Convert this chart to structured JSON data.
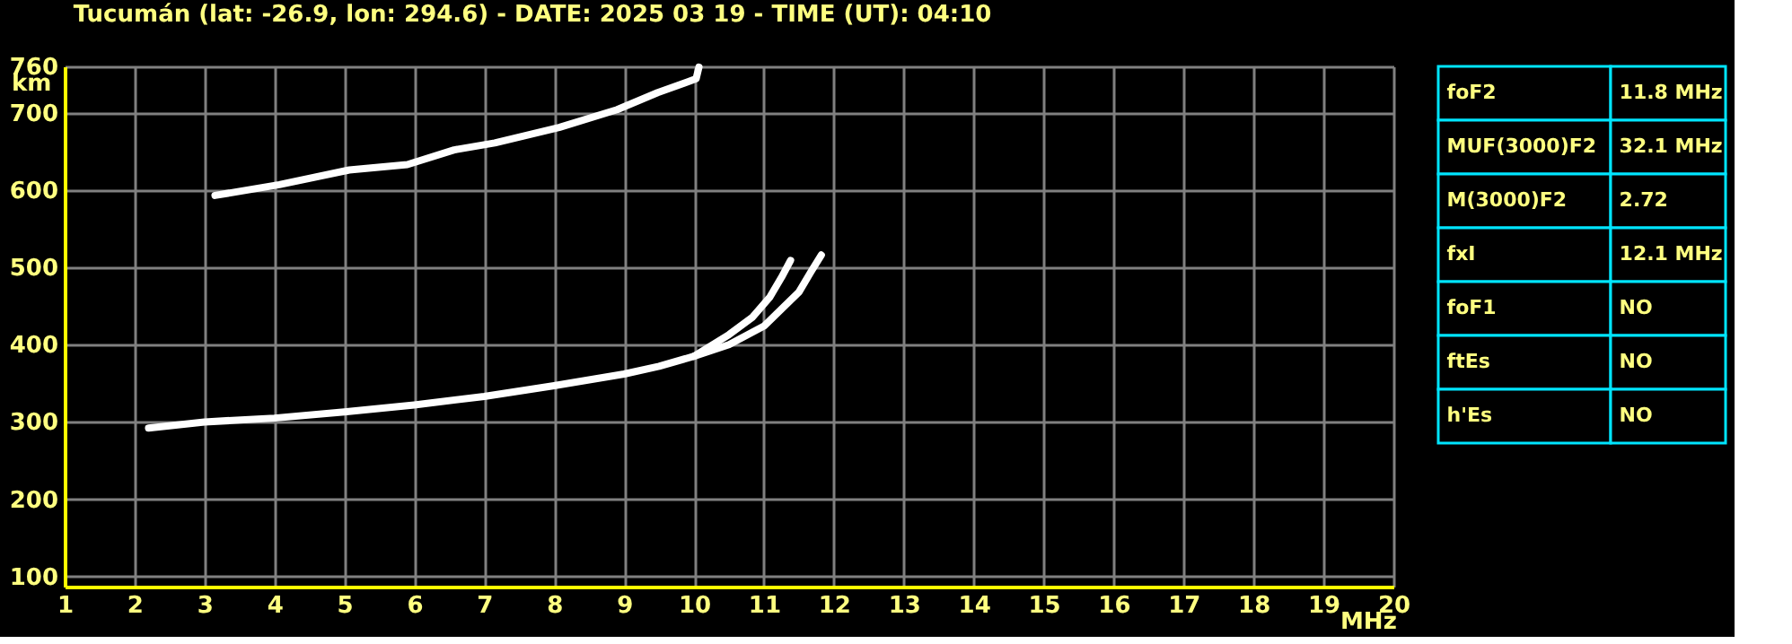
{
  "chart_data": [
    {
      "type": "line",
      "title": "Tucumán (lat: -26.9, lon: 294.6) - DATE: 2025 03 19 - TIME (UT): 04:10",
      "xlabel": "MHz",
      "ylabel": "km",
      "xlim": [
        1,
        20
      ],
      "xticks": [
        1,
        2,
        3,
        4,
        5,
        6,
        7,
        8,
        9,
        10,
        11,
        12,
        13,
        14,
        15,
        16,
        17,
        18,
        19,
        20
      ],
      "ylim": [
        87,
        760
      ],
      "yticks": [
        100,
        200,
        300,
        400,
        500,
        600,
        700,
        760
      ],
      "grid": true,
      "series": [
        {
          "color": "#ffffff",
          "x": [
            2.2,
            3,
            4,
            5,
            6,
            7,
            8,
            9,
            9.5,
            10,
            10.5,
            11.0,
            11.25,
            11.5,
            11.67,
            11.82
          ],
          "values": [
            292,
            300,
            305,
            313,
            322,
            333,
            347,
            362,
            372,
            385,
            400,
            424,
            446,
            468,
            494,
            516
          ]
        },
        {
          "color": "#ffffff",
          "x": [
            10.0,
            10.5,
            10.83,
            11.08,
            11.25,
            11.38
          ],
          "values": [
            385,
            413,
            435,
            461,
            487,
            509
          ]
        },
        {
          "color": "#ffffff",
          "x": [
            3.15,
            4.07,
            5.07,
            5.9,
            6.57,
            7.15,
            8.07,
            8.9,
            9.48,
            10.03,
            10.07
          ],
          "values": [
            593,
            607,
            626,
            633,
            652,
            661,
            681,
            704,
            726,
            744,
            759
          ]
        }
      ]
    },
    {
      "type": "other",
      "categories": [
        "foF2",
        "MUF(3000)F2",
        "M(3000)F2",
        "fxI",
        "foF1",
        "ftEs",
        "h'Es"
      ],
      "value_labels": [
        "11.8 MHz",
        "32.1 MHz",
        "2.72",
        "12.1 MHz",
        "NO",
        "NO",
        "NO"
      ]
    }
  ]
}
